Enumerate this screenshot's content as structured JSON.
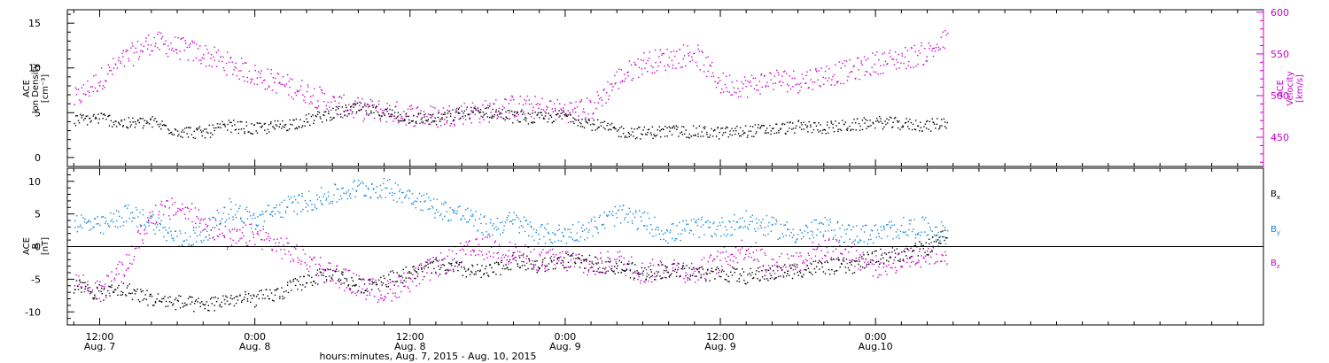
{
  "colors": {
    "black": "#000000",
    "magenta": "#cc00cc",
    "blue": "#1188dd"
  },
  "x_axis": {
    "title": "hours:minutes, Aug. 7, 2015 - Aug. 10, 2015",
    "range_hours": [
      -2.5,
      90
    ],
    "ticks": [
      {
        "hour": 0,
        "time": "12:00",
        "date": "Aug. 7"
      },
      {
        "hour": 12,
        "time": "0:00",
        "date": "Aug. 8"
      },
      {
        "hour": 24,
        "time": "12:00",
        "date": "Aug. 8"
      },
      {
        "hour": 36,
        "time": "0:00",
        "date": "Aug. 9"
      },
      {
        "hour": 48,
        "time": "12:00",
        "date": "Aug. 9"
      },
      {
        "hour": 60,
        "time": "0:00",
        "date": "Aug.10"
      }
    ]
  },
  "chart_data": [
    {
      "type": "scatter",
      "panel": "top",
      "ylabel": [
        "ACE",
        "Ion Density",
        "[cm⁻³]"
      ],
      "ylim": [
        -1,
        16.5
      ],
      "yticks": [
        0,
        5,
        10,
        15
      ],
      "ylabel_right": [
        "ACE",
        "Velocity",
        "[km/s]"
      ],
      "ylim_right": [
        415,
        603
      ],
      "yticks_right": [
        450,
        500,
        550,
        600
      ],
      "series": [
        {
          "name": "Ion Density",
          "axis": "left",
          "color": "black",
          "x": [
            -2,
            0,
            2,
            4,
            6,
            8,
            10,
            12,
            14,
            16,
            18,
            20,
            22,
            24,
            26,
            28,
            30,
            32,
            34,
            36,
            38,
            40,
            42,
            44,
            46,
            48,
            50,
            52,
            54,
            56,
            58,
            60,
            62,
            64,
            65.5
          ],
          "y": [
            4.2,
            4.5,
            3.8,
            4.0,
            3.0,
            2.8,
            3.6,
            3.2,
            3.6,
            4.2,
            5.0,
            5.5,
            5.0,
            4.5,
            4.3,
            5.0,
            5.2,
            4.6,
            4.4,
            4.8,
            3.8,
            3.0,
            2.8,
            3.0,
            2.9,
            2.8,
            3.0,
            3.2,
            3.5,
            3.4,
            3.6,
            4.0,
            3.8,
            3.6,
            4.0
          ]
        },
        {
          "name": "Velocity",
          "axis": "right",
          "color": "magenta",
          "x": [
            -2,
            0,
            2,
            4,
            6,
            8,
            10,
            12,
            14,
            16,
            18,
            20,
            22,
            24,
            26,
            28,
            30,
            32,
            34,
            36,
            38,
            40,
            42,
            44,
            46,
            48,
            50,
            52,
            54,
            56,
            58,
            60,
            62,
            64,
            65.5
          ],
          "y": [
            495,
            520,
            545,
            565,
            558,
            550,
            538,
            525,
            515,
            505,
            490,
            484,
            482,
            478,
            475,
            480,
            482,
            488,
            486,
            482,
            485,
            520,
            540,
            545,
            552,
            515,
            512,
            520,
            518,
            525,
            530,
            540,
            545,
            552,
            568
          ]
        }
      ]
    },
    {
      "type": "scatter",
      "panel": "bottom",
      "ylabel": [
        "ACE",
        "B",
        "[nT]"
      ],
      "ylim": [
        -12,
        12
      ],
      "yticks": [
        -10,
        -5,
        0,
        5,
        10
      ],
      "legend": "right",
      "series": [
        {
          "name": "Bx",
          "color": "black",
          "x": [
            -2,
            0,
            2,
            4,
            6,
            8,
            10,
            12,
            14,
            16,
            18,
            20,
            22,
            24,
            26,
            28,
            30,
            32,
            34,
            36,
            38,
            40,
            42,
            44,
            46,
            48,
            50,
            52,
            54,
            56,
            58,
            60,
            62,
            64,
            65.5
          ],
          "y": [
            -6,
            -7,
            -6.5,
            -8,
            -8.5,
            -9,
            -8,
            -8,
            -7,
            -5,
            -4,
            -6,
            -5,
            -4,
            -3,
            -3.5,
            -4,
            -2,
            -3,
            -2,
            -2.5,
            -3,
            -4,
            -3.5,
            -4,
            -4,
            -4.5,
            -4,
            -3.5,
            -3,
            -3,
            -1.5,
            -1,
            0,
            2
          ]
        },
        {
          "name": "By",
          "color": "blue",
          "x": [
            -2,
            0,
            2,
            4,
            6,
            8,
            10,
            12,
            14,
            16,
            18,
            20,
            22,
            24,
            26,
            28,
            30,
            32,
            34,
            36,
            38,
            40,
            42,
            44,
            46,
            48,
            50,
            52,
            54,
            56,
            58,
            60,
            62,
            64,
            65.5
          ],
          "y": [
            4,
            3,
            5,
            4,
            1,
            2,
            6,
            4,
            6,
            7,
            8,
            9,
            9,
            8,
            6,
            5,
            3,
            4,
            2,
            2,
            3,
            5,
            4,
            2,
            3,
            3,
            4,
            3,
            2,
            3,
            2,
            2,
            3,
            3,
            2
          ]
        },
        {
          "name": "Bz",
          "color": "magenta",
          "x": [
            -2,
            0,
            2,
            4,
            6,
            8,
            10,
            12,
            14,
            16,
            18,
            20,
            22,
            24,
            26,
            28,
            30,
            32,
            34,
            36,
            38,
            40,
            42,
            44,
            46,
            48,
            50,
            52,
            54,
            56,
            58,
            60,
            62,
            64,
            65.5
          ],
          "y": [
            -5,
            -7,
            -3,
            5,
            6,
            4,
            1,
            2,
            0,
            -2,
            -4,
            -6,
            -7,
            -5,
            -3,
            -1,
            0,
            -1,
            -2,
            -2,
            -3,
            -2,
            -4,
            -3,
            -4,
            -2,
            0,
            -3,
            -2,
            0,
            -1,
            -3,
            -2,
            -1,
            -1
          ]
        }
      ]
    }
  ],
  "legend_labels": {
    "bx_main": "B",
    "bx_sub": "x",
    "by_main": "B",
    "by_sub": "y",
    "bz_main": "B",
    "bz_sub": "z"
  }
}
